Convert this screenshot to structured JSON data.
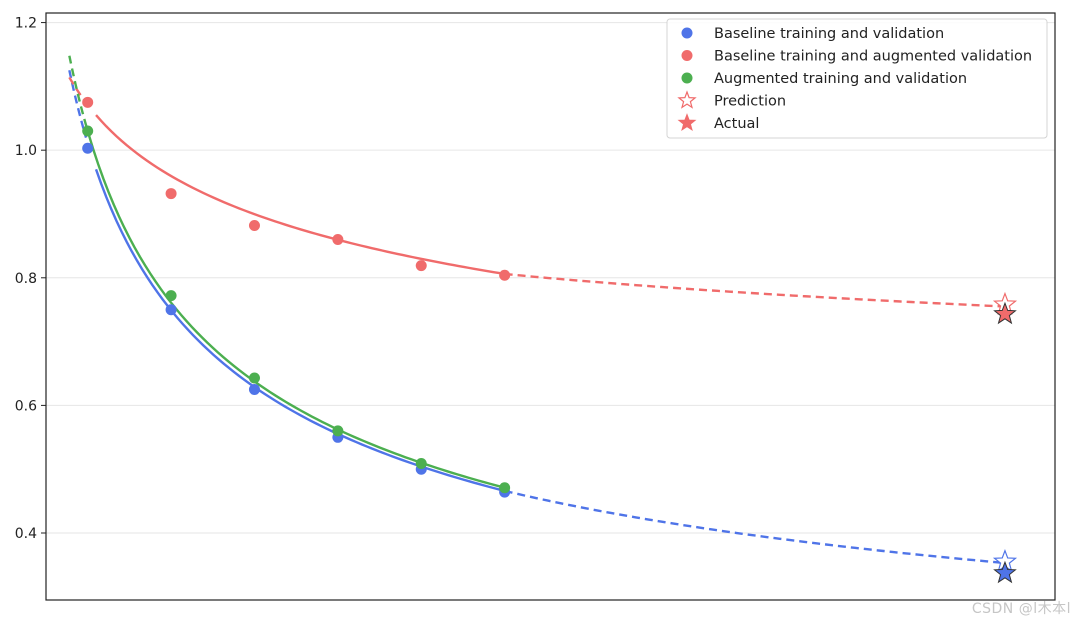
{
  "chart_data": {
    "type": "scatter",
    "title": "",
    "xlabel": "",
    "ylabel": "",
    "x_tick_labels": false,
    "xlim": [
      0.5,
      12.6
    ],
    "ylim": [
      0.295,
      1.215
    ],
    "yticks": [
      0.4,
      0.6,
      0.8,
      1.0,
      1.2
    ],
    "ytick_labels": [
      "0.4",
      "0.6",
      "0.8",
      "1.0",
      "1.2"
    ],
    "grid": "horizontal",
    "legend_position": "top-right",
    "series": [
      {
        "name": "Baseline training and validation",
        "color": "#4f74e8",
        "x": [
          1,
          2,
          3,
          4,
          5,
          6
        ],
        "y": [
          1.003,
          0.75,
          0.625,
          0.55,
          0.5,
          0.464
        ],
        "fit_curve": {
          "solid_x_range": [
            1.1,
            6.0
          ],
          "dashed_x_range": [
            6.0,
            12.0
          ],
          "dashed_lead_x_range": [
            0.78,
            0.98
          ],
          "solid_y_at": {
            "1.1": 0.97,
            "6.0": 0.466
          },
          "end_y": 0.353
        },
        "prediction": {
          "x": 12,
          "y": 0.355
        },
        "actual": {
          "x": 12,
          "y": 0.337
        }
      },
      {
        "name": "Baseline training and augmented validation",
        "color": "#f06b6b",
        "x": [
          1,
          2,
          3,
          4,
          5,
          6
        ],
        "y": [
          1.075,
          0.932,
          0.882,
          0.86,
          0.819,
          0.804
        ],
        "fit_curve": {
          "solid_x_range": [
            1.1,
            6.0
          ],
          "dashed_x_range": [
            6.0,
            12.0
          ],
          "dashed_lead_x_range": [
            0.78,
            1.0
          ],
          "solid_y_at": {
            "1.1": 1.055,
            "6.0": 0.806
          },
          "end_y": 0.755
        },
        "prediction": {
          "x": 12,
          "y": 0.758
        },
        "actual": {
          "x": 12,
          "y": 0.743
        }
      },
      {
        "name": "Augmented training and validation",
        "color": "#4caf50",
        "x": [
          1,
          2,
          3,
          4,
          5,
          6
        ],
        "y": [
          1.03,
          0.772,
          0.643,
          0.56,
          0.509,
          0.471
        ],
        "fit_curve": {
          "solid_x_range": [
            1.0,
            6.0
          ],
          "dashed_x_range": [
            6.0,
            6.0
          ],
          "dashed_lead_x_range": [
            0.78,
            1.0
          ],
          "solid_y_at": {
            "1.0": 1.03,
            "6.0": 0.471
          },
          "end_y": 0.471
        }
      }
    ],
    "legend": [
      {
        "label": "Baseline training and validation",
        "marker": "dot",
        "color": "#4f74e8"
      },
      {
        "label": "Baseline training and augmented validation",
        "marker": "dot",
        "color": "#f06b6b"
      },
      {
        "label": "Augmented training and validation",
        "marker": "dot",
        "color": "#4caf50"
      },
      {
        "label": "Prediction",
        "marker": "star-hollow",
        "color": "#f06b6b"
      },
      {
        "label": "Actual",
        "marker": "star-filled",
        "color": "#f06b6b"
      }
    ]
  },
  "watermark": "CSDN @l木本l"
}
